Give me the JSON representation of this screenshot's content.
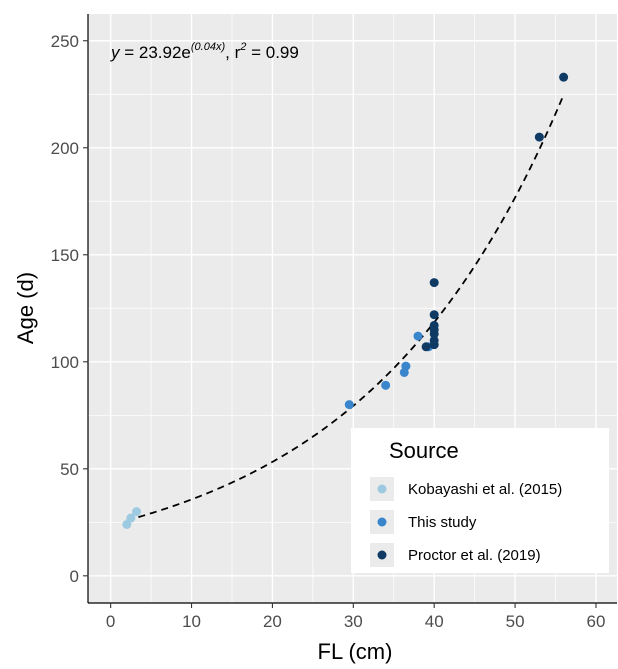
{
  "chart_data": {
    "type": "scatter",
    "xlabel": "FL (cm)",
    "ylabel": "Age (d)",
    "xlim": [
      -2.8,
      62.6
    ],
    "ylim": [
      -12.7,
      262.5
    ],
    "x_ticks": [
      0,
      10,
      20,
      30,
      40,
      50,
      60
    ],
    "y_ticks": [
      0,
      50,
      100,
      150,
      200,
      250
    ],
    "grid": true,
    "annotation": {
      "y_var": "y",
      "equation_base": " = 23.92e",
      "exponent": "(0.04x)",
      "r2_label": ", r",
      "r2_sup": "2",
      "r2_value": " = 0.99"
    },
    "fit": {
      "type": "exponential",
      "a": 23.92,
      "b": 0.04,
      "x_range": [
        2,
        56
      ],
      "style": "dashed"
    },
    "legend": {
      "title": "Source",
      "position": "bottom-right"
    },
    "series": [
      {
        "name": "Kobayashi et al. (2015)",
        "color": "#9ecae1",
        "points": [
          [
            2.0,
            24
          ],
          [
            2.5,
            27
          ],
          [
            3.2,
            30
          ]
        ]
      },
      {
        "name": "This study",
        "color": "#3a86cc",
        "points": [
          [
            29.5,
            80
          ],
          [
            34.0,
            89
          ],
          [
            36.3,
            95
          ],
          [
            36.5,
            98
          ],
          [
            38.0,
            112
          ],
          [
            39.3,
            107
          ]
        ]
      },
      {
        "name": "Proctor et al. (2019)",
        "color": "#0e3a63",
        "points": [
          [
            39.0,
            107
          ],
          [
            40.0,
            108
          ],
          [
            40.0,
            110
          ],
          [
            40.0,
            113
          ],
          [
            40.0,
            115
          ],
          [
            40.0,
            117
          ],
          [
            40.0,
            122
          ],
          [
            40.0,
            137
          ],
          [
            53.0,
            205
          ],
          [
            56.0,
            233
          ]
        ]
      }
    ]
  }
}
